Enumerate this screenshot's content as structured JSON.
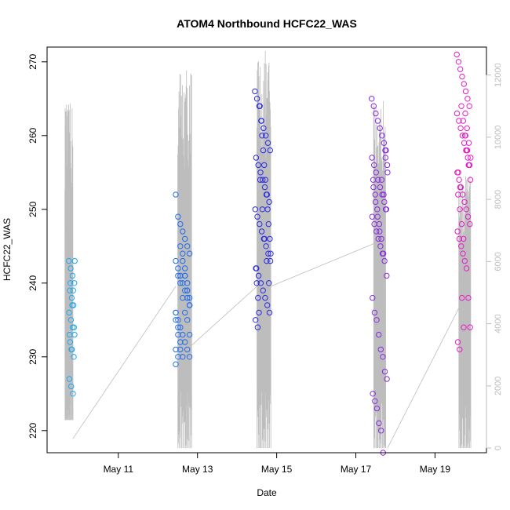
{
  "chart_data": {
    "type": "scatter",
    "title": "ATOM4 Northbound HCFC22_WAS",
    "xlabel": "Date",
    "ylabel": "HCFC22_WAS",
    "x_ticks": [
      "May 11",
      "May 13",
      "May 15",
      "May 17",
      "May 19"
    ],
    "x_tick_days": [
      11,
      13,
      15,
      17,
      19
    ],
    "xlim_days": [
      9.2,
      20.3
    ],
    "y_ticks": [
      220,
      230,
      240,
      250,
      260,
      270
    ],
    "ylim": [
      217,
      272
    ],
    "y2_ticks": [
      0,
      2000,
      4000,
      6000,
      8000,
      10000,
      12000
    ],
    "y2lim": [
      -150,
      12900
    ],
    "colors": {
      "flight1": "#1ea8f0",
      "flight2": "#1e6cf0",
      "flight3": "#2a2ae6",
      "flight4": "#8a2be2",
      "flight5": "#e61ec8",
      "altitude": "#bdbdbd",
      "axis": "#000000",
      "right_axis": "#bdbdbd"
    },
    "flights": [
      {
        "color": "flight1",
        "x_range": [
          9.75,
          9.9
        ],
        "values": [
          243,
          242,
          241,
          240,
          239,
          238,
          237,
          236,
          235,
          234,
          233,
          232,
          231,
          230,
          227,
          226,
          225,
          243,
          240,
          237,
          234,
          233,
          231,
          239
        ]
      },
      {
        "color": "flight2",
        "x_range": [
          12.45,
          12.85
        ],
        "values": [
          252,
          249,
          248,
          247,
          246,
          245,
          244,
          243,
          242,
          241,
          240,
          239,
          238,
          237,
          236,
          235,
          234,
          233,
          232,
          231,
          230,
          229,
          241,
          240,
          238,
          236,
          235,
          233,
          231,
          230,
          245,
          243,
          241,
          239,
          237,
          235,
          233,
          231,
          244,
          242,
          240,
          238,
          236,
          234,
          232,
          230,
          241,
          239,
          237
        ]
      },
      {
        "color": "flight3",
        "x_range": [
          14.45,
          14.85
        ],
        "values": [
          266,
          265,
          264,
          262,
          261,
          260,
          259,
          258,
          257,
          256,
          255,
          254,
          253,
          252,
          251,
          250,
          249,
          248,
          247,
          246,
          245,
          244,
          243,
          242,
          241,
          240,
          239,
          238,
          237,
          236,
          235,
          234,
          264,
          260,
          256,
          252,
          248,
          244,
          240,
          236,
          262,
          258,
          254,
          250,
          246,
          242,
          238,
          254,
          250,
          246,
          243,
          240
        ]
      },
      {
        "color": "flight4",
        "x_range": [
          17.4,
          17.8
        ],
        "values": [
          265,
          264,
          263,
          262,
          261,
          260,
          259,
          258,
          257,
          256,
          255,
          254,
          253,
          252,
          251,
          250,
          249,
          248,
          247,
          246,
          245,
          244,
          243,
          241,
          238,
          236,
          235,
          233,
          231,
          230,
          228,
          227,
          225,
          224,
          223,
          221,
          220,
          217,
          258,
          256,
          254,
          252,
          250,
          248,
          246,
          244,
          257,
          255,
          253,
          251,
          249,
          247,
          254,
          252,
          250
        ]
      },
      {
        "color": "flight5",
        "x_range": [
          19.55,
          19.9
        ],
        "values": [
          271,
          270,
          269,
          268,
          267,
          266,
          265,
          264,
          263,
          262,
          261,
          260,
          259,
          258,
          257,
          256,
          255,
          254,
          253,
          252,
          251,
          250,
          249,
          248,
          247,
          246,
          245,
          244,
          243,
          242,
          238,
          234,
          232,
          231,
          264,
          262,
          260,
          258,
          256,
          254,
          252,
          250,
          248,
          246,
          263,
          261,
          259,
          257,
          255,
          253,
          238,
          234,
          260,
          258,
          256
        ]
      }
    ],
    "altitude": {
      "axis": "right",
      "flights": [
        {
          "x_range": [
            9.65,
            9.85
          ],
          "peak": 11100,
          "floor": 900
        },
        {
          "x_range": [
            12.5,
            12.85
          ],
          "peak": 12400,
          "floor": 0
        },
        {
          "x_range": [
            14.5,
            14.85
          ],
          "peak": 12800,
          "floor": 0
        },
        {
          "x_range": [
            17.45,
            17.75
          ],
          "peak": 11300,
          "floor": 0
        },
        {
          "x_range": [
            19.6,
            19.9
          ],
          "peak": 8900,
          "floor": 0
        }
      ],
      "transits": [
        [
          [
            9.85,
            300
          ],
          [
            12.45,
            5200
          ]
        ],
        [
          [
            12.85,
            3300
          ],
          [
            14.5,
            5200
          ]
        ],
        [
          [
            14.85,
            5200
          ],
          [
            17.5,
            6600
          ]
        ],
        [
          [
            17.8,
            0
          ],
          [
            19.6,
            4500
          ]
        ]
      ]
    }
  }
}
